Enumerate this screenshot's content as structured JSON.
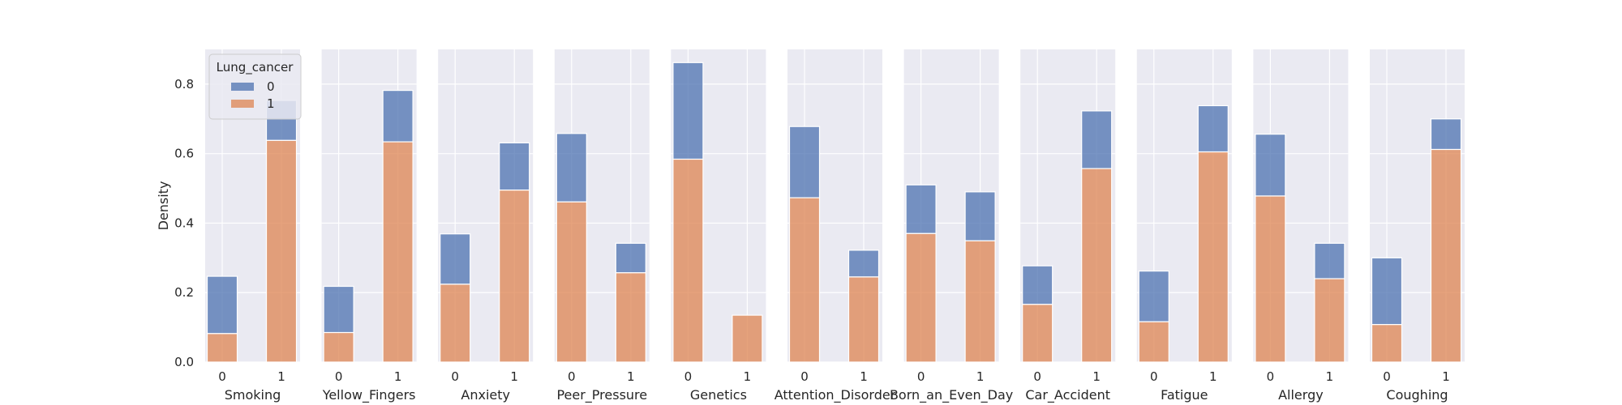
{
  "chart_data": {
    "type": "bar",
    "stacked": true,
    "ylabel": "Density",
    "ylim": [
      0,
      0.9
    ],
    "yticks": [
      0.0,
      0.2,
      0.4,
      0.6,
      0.8
    ],
    "ytick_labels": [
      "0.0",
      "0.2",
      "0.4",
      "0.6",
      "0.8"
    ],
    "categories": [
      "0",
      "1"
    ],
    "grid": true,
    "legend": {
      "title": "Lung_cancer",
      "placement": "top-left",
      "entries": [
        {
          "label": "0",
          "color": "#4C72B0"
        },
        {
          "label": "1",
          "color": "#DD8452"
        }
      ]
    },
    "colors": {
      "0": "#4C72B0",
      "1": "#DD8452",
      "panel_bg": "#EAEAF2"
    },
    "panels": [
      {
        "xlabel": "Smoking",
        "bars": [
          {
            "x": "0",
            "lung_cancer_1": 0.082,
            "total": 0.247
          },
          {
            "x": "1",
            "lung_cancer_1": 0.638,
            "total": 0.753
          }
        ]
      },
      {
        "xlabel": "Yellow_Fingers",
        "bars": [
          {
            "x": "0",
            "lung_cancer_1": 0.085,
            "total": 0.218
          },
          {
            "x": "1",
            "lung_cancer_1": 0.634,
            "total": 0.782
          }
        ]
      },
      {
        "xlabel": "Anxiety",
        "bars": [
          {
            "x": "0",
            "lung_cancer_1": 0.224,
            "total": 0.369
          },
          {
            "x": "1",
            "lung_cancer_1": 0.495,
            "total": 0.631
          }
        ]
      },
      {
        "xlabel": "Peer_Pressure",
        "bars": [
          {
            "x": "0",
            "lung_cancer_1": 0.461,
            "total": 0.658
          },
          {
            "x": "1",
            "lung_cancer_1": 0.257,
            "total": 0.342
          }
        ]
      },
      {
        "xlabel": "Genetics",
        "bars": [
          {
            "x": "0",
            "lung_cancer_1": 0.584,
            "total": 0.862
          },
          {
            "x": "1",
            "lung_cancer_1": 0.135,
            "total": 0.135
          }
        ]
      },
      {
        "xlabel": "Attention_Disorder",
        "bars": [
          {
            "x": "0",
            "lung_cancer_1": 0.473,
            "total": 0.678
          },
          {
            "x": "1",
            "lung_cancer_1": 0.245,
            "total": 0.322
          }
        ]
      },
      {
        "xlabel": "Born_an_Even_Day",
        "bars": [
          {
            "x": "0",
            "lung_cancer_1": 0.37,
            "total": 0.51
          },
          {
            "x": "1",
            "lung_cancer_1": 0.349,
            "total": 0.49
          }
        ]
      },
      {
        "xlabel": "Car_Accident",
        "bars": [
          {
            "x": "0",
            "lung_cancer_1": 0.166,
            "total": 0.277
          },
          {
            "x": "1",
            "lung_cancer_1": 0.557,
            "total": 0.723
          }
        ]
      },
      {
        "xlabel": "Fatigue",
        "bars": [
          {
            "x": "0",
            "lung_cancer_1": 0.116,
            "total": 0.262
          },
          {
            "x": "1",
            "lung_cancer_1": 0.605,
            "total": 0.738
          }
        ]
      },
      {
        "xlabel": "Allergy",
        "bars": [
          {
            "x": "0",
            "lung_cancer_1": 0.478,
            "total": 0.656
          },
          {
            "x": "1",
            "lung_cancer_1": 0.24,
            "total": 0.342
          }
        ]
      },
      {
        "xlabel": "Coughing",
        "bars": [
          {
            "x": "0",
            "lung_cancer_1": 0.108,
            "total": 0.3
          },
          {
            "x": "1",
            "lung_cancer_1": 0.612,
            "total": 0.7
          }
        ]
      }
    ]
  }
}
